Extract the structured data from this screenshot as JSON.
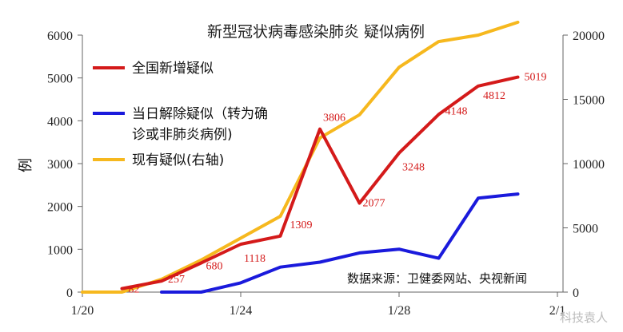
{
  "chart_data": {
    "type": "line",
    "title": "新型冠状病毒感染肺炎 疑似病例",
    "ylabel": "例",
    "ylim": [
      0,
      6000
    ],
    "y2lim": [
      0,
      20000
    ],
    "y_ticks": [
      "0",
      "1000",
      "2000",
      "3000",
      "4000",
      "5000",
      "6000"
    ],
    "y2_ticks": [
      "0",
      "5000",
      "10000",
      "15000",
      "20000"
    ],
    "x_ticks": [
      "1/20",
      "1/24",
      "1/28",
      "2/1"
    ],
    "x": [
      "1/20",
      "1/21",
      "1/22",
      "1/23",
      "1/24",
      "1/25",
      "1/26",
      "1/27",
      "1/28",
      "1/29",
      "1/30",
      "1/31"
    ],
    "series": [
      {
        "name": "全国新增疑似",
        "color": "#d41a1a",
        "axis": "left",
        "x": [
          "1/21",
          "1/22",
          "1/23",
          "1/24",
          "1/25",
          "1/26",
          "1/27",
          "1/28",
          "1/29",
          "1/30",
          "1/31"
        ],
        "values": [
          82,
          257,
          680,
          1118,
          1309,
          3806,
          2077,
          3248,
          4148,
          4812,
          5019
        ],
        "data_labels": [
          "82",
          "257",
          "680",
          "1118",
          "1309",
          "3806",
          "2077",
          "3248",
          "4148",
          "4812",
          "5019"
        ]
      },
      {
        "name": "当日解除疑似（转为确诊或非肺炎病例）",
        "name_lines": [
          "当日解除疑似（转为确",
          "诊或非肺炎病例)"
        ],
        "color": "#1a1adc",
        "axis": "left",
        "x": [
          "1/22",
          "1/23",
          "1/24",
          "1/25",
          "1/26",
          "1/27",
          "1/28",
          "1/29",
          "1/30",
          "1/31"
        ],
        "values": [
          0,
          0,
          216,
          583,
          699,
          914,
          1002,
          790,
          2195,
          2290
        ]
      },
      {
        "name": "现有疑似(右轴)",
        "color": "#f6b81e",
        "axis": "right",
        "x": [
          "1/20",
          "1/21",
          "1/22",
          "1/23",
          "1/24",
          "1/25",
          "1/26",
          "1/27",
          "1/28",
          "1/29",
          "1/30",
          "1/31"
        ],
        "values": [
          0,
          0,
          1000,
          2500,
          4200,
          5900,
          12000,
          13800,
          17500,
          19500,
          20000,
          21000
        ]
      }
    ],
    "source": "数据来源：卫健委网站、央视新闻",
    "watermark": "科技袁人",
    "legend_position": "top-left"
  }
}
